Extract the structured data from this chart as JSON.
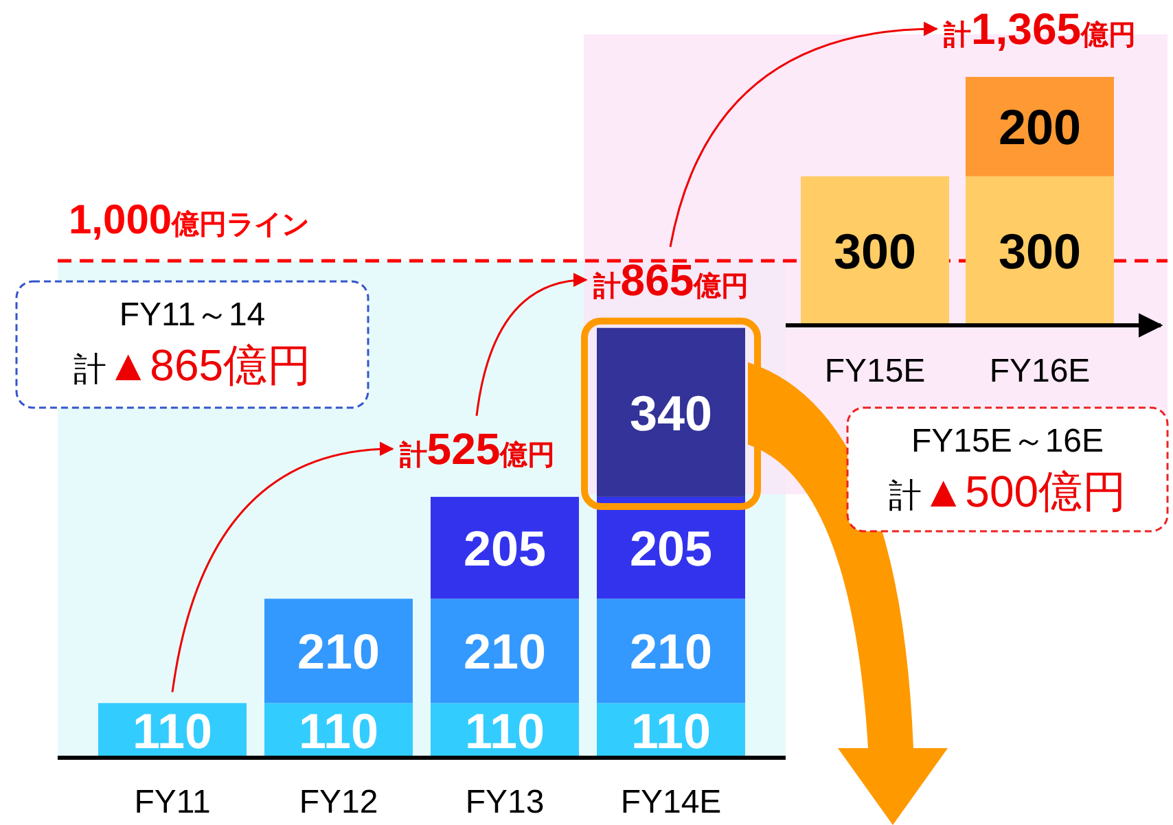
{
  "chart_data": [
    {
      "type": "bar",
      "stacked": true,
      "data_labels": true,
      "categories": [
        "FY11",
        "FY12",
        "FY13",
        "FY14E"
      ],
      "series": [
        {
          "color": "#33ccff",
          "values": [
            110,
            110,
            110,
            110
          ]
        },
        {
          "color": "#3399ff",
          "values": [
            null,
            210,
            210,
            210
          ]
        },
        {
          "color": "#3333ee",
          "values": [
            null,
            null,
            205,
            205
          ]
        },
        {
          "color": "#333399",
          "values": [
            null,
            null,
            null,
            340
          ]
        }
      ],
      "ref_lines": [
        {
          "axis": "y",
          "value": 1000,
          "label": "1,000億円ライン",
          "color": "#ff0000",
          "line_style": "dashed"
        }
      ],
      "annotations": [
        {
          "text": "計525億円",
          "x": "FY13",
          "y": 525
        },
        {
          "text": "計865億円",
          "x": "FY14E",
          "y": 865
        },
        "FY11～14\n計▲865億円"
      ]
    },
    {
      "type": "bar",
      "stacked": true,
      "data_labels": true,
      "categories": [
        "FY15E",
        "FY16E"
      ],
      "series": [
        {
          "color": "#ffcc66",
          "values": [
            300,
            300
          ]
        },
        {
          "color": "#ff9933",
          "values": [
            null,
            200
          ]
        }
      ],
      "annotations": [
        {
          "text": "計1,365億円",
          "x": "FY16E",
          "y": 500
        },
        "FY15E～16E\n計▲500億円"
      ]
    }
  ]
}
